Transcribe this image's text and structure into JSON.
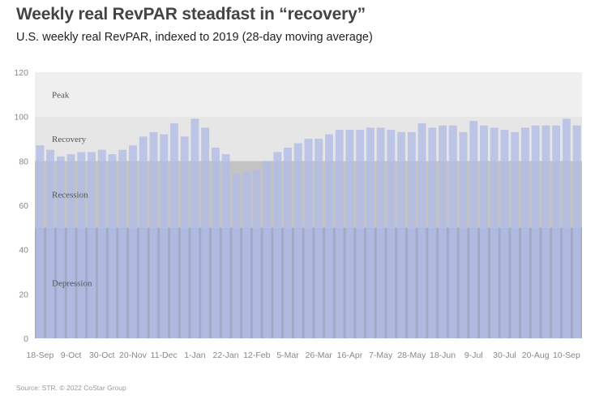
{
  "header": {
    "title": "Weekly real RevPAR steadfast in “recovery”",
    "subtitle": "U.S. weekly real RevPAR, indexed to 2019 (28-day moving average)"
  },
  "footer": {
    "source": "Source: STR. © 2022 CoStar Group"
  },
  "chart_data": {
    "type": "bar",
    "title": "Weekly real RevPAR steadfast in “recovery”",
    "subtitle": "U.S. weekly real RevPAR, indexed to 2019 (28-day moving average)",
    "ylim": [
      0,
      120
    ],
    "yticks": [
      0,
      20,
      40,
      60,
      80,
      100,
      120
    ],
    "x_tick_labels": [
      "18-Sep",
      "9-Oct",
      "30-Oct",
      "20-Nov",
      "11-Dec",
      "1-Jan",
      "22-Jan",
      "12-Feb",
      "5-Mar",
      "26-Mar",
      "16-Apr",
      "7-May",
      "28-May",
      "18-Jun",
      "9-Jul",
      "30-Jul",
      "20-Aug",
      "10-Sep"
    ],
    "zones": [
      {
        "label": "Depression",
        "from": 0,
        "to": 50,
        "color": "#a1a9c6"
      },
      {
        "label": "Recession",
        "from": 50,
        "to": 80,
        "color": "#c3c3c3"
      },
      {
        "label": "Recovery",
        "from": 80,
        "to": 100,
        "color": "#e6e6e6"
      },
      {
        "label": "Peak",
        "from": 100,
        "to": 120,
        "color": "#efefef"
      }
    ],
    "bar_color": "#b3bde6",
    "values": [
      87,
      85,
      82,
      83,
      84,
      84,
      85,
      83,
      85,
      87,
      91,
      93,
      92,
      97,
      91,
      99,
      95,
      86,
      83,
      74,
      75,
      76,
      80,
      84,
      86,
      88,
      90,
      90,
      92,
      94,
      94,
      94,
      95,
      95,
      94,
      93,
      93,
      97,
      95,
      96,
      96,
      93,
      98,
      96,
      95,
      94,
      93,
      95,
      96,
      96,
      96,
      99,
      96
    ],
    "source": "Source: STR. © 2022 CoStar Group"
  }
}
